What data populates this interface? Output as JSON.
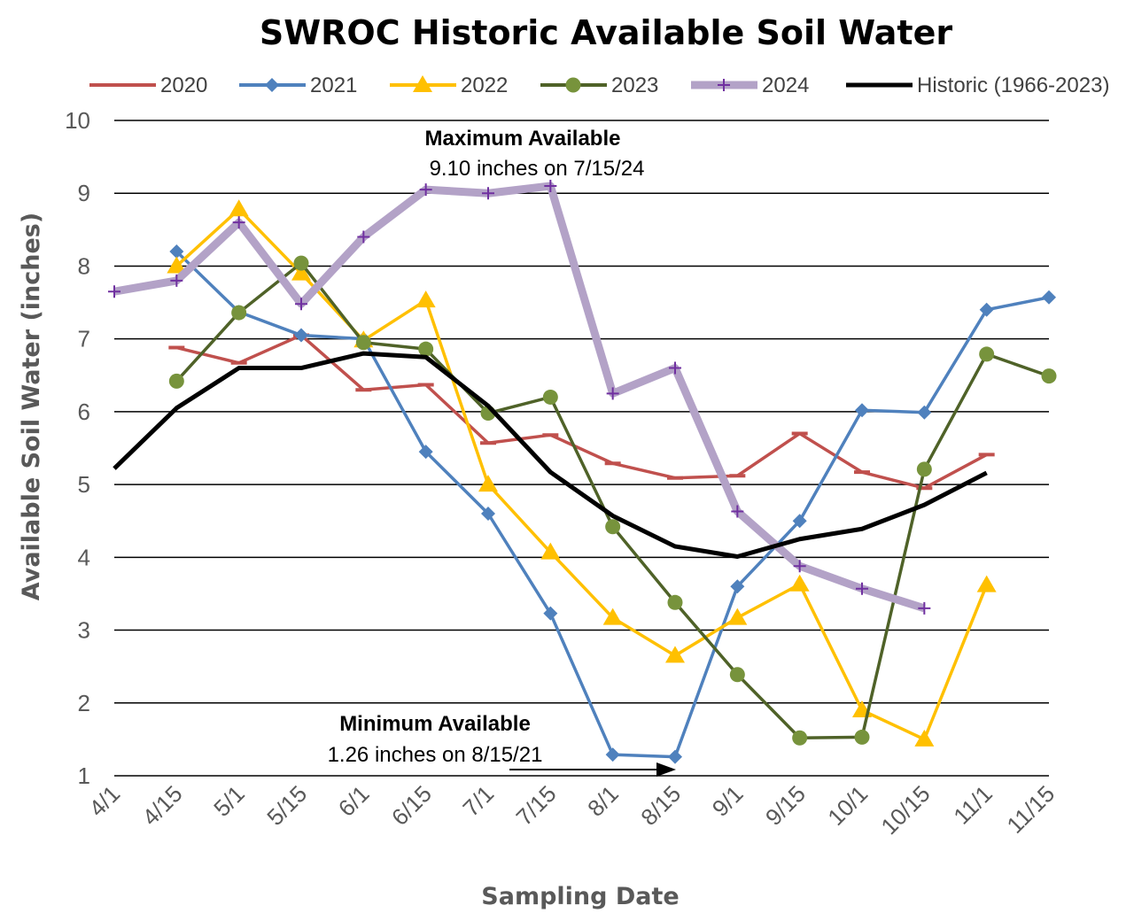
{
  "chart_data": {
    "type": "line",
    "title": "SWROC Historic Available Soil Water",
    "xlabel": "Sampling Date",
    "ylabel": "Available Soil Water (inches)",
    "ylim": [
      1,
      10
    ],
    "yticks": [
      "1",
      "2",
      "3",
      "4",
      "5",
      "6",
      "7",
      "8",
      "9",
      "10"
    ],
    "grid": "horizontal",
    "legend_position": "top",
    "categories": [
      "4/1",
      "4/15",
      "5/1",
      "5/15",
      "6/1",
      "6/15",
      "7/1",
      "7/15",
      "8/1",
      "8/15",
      "9/1",
      "9/15",
      "10/1",
      "10/15",
      "11/1",
      "11/15"
    ],
    "series": [
      {
        "name": "2020",
        "color": "#c0504d",
        "marker": "dash",
        "values": [
          null,
          6.88,
          6.67,
          7.05,
          6.3,
          6.37,
          5.57,
          5.68,
          5.29,
          5.09,
          5.12,
          5.7,
          5.17,
          4.95,
          5.41,
          null
        ]
      },
      {
        "name": "2021",
        "color": "#4f81bd",
        "marker": "diamond",
        "values": [
          null,
          8.2,
          7.37,
          7.05,
          7.0,
          5.45,
          4.6,
          3.23,
          1.29,
          1.26,
          3.6,
          4.5,
          6.02,
          5.99,
          7.4,
          7.57
        ]
      },
      {
        "name": "2022",
        "color": "#ffc000",
        "marker": "triangle",
        "values": [
          null,
          8.0,
          8.78,
          7.9,
          6.98,
          7.53,
          5.0,
          4.07,
          3.17,
          2.65,
          3.17,
          3.63,
          1.9,
          1.5,
          3.62,
          null
        ]
      },
      {
        "name": "2023",
        "color": "#4f6228",
        "marker": "circle",
        "values": [
          null,
          6.42,
          7.36,
          8.04,
          6.95,
          6.86,
          5.98,
          6.2,
          4.42,
          3.38,
          2.39,
          1.52,
          1.53,
          5.21,
          6.79,
          6.49
        ]
      },
      {
        "name": "2024",
        "color": "#b3a2c7",
        "marker": "plus",
        "values": [
          7.65,
          7.8,
          8.6,
          7.48,
          8.4,
          9.05,
          9.0,
          9.1,
          6.25,
          6.6,
          4.63,
          3.88,
          3.57,
          3.3,
          null,
          null
        ]
      },
      {
        "name": "Historic (1966-2023)",
        "color": "#000000",
        "marker": "none",
        "values": [
          5.22,
          6.05,
          6.6,
          6.6,
          6.8,
          6.75,
          6.08,
          5.17,
          4.57,
          4.15,
          4.01,
          4.25,
          4.39,
          4.72,
          5.16,
          null
        ]
      }
    ],
    "annotations": [
      {
        "title": "Maximum Available",
        "text": "9.10 inches on 7/15/24"
      },
      {
        "title": "Minimum Available",
        "text": "1.26 inches on 8/15/21",
        "arrow": true
      }
    ]
  }
}
